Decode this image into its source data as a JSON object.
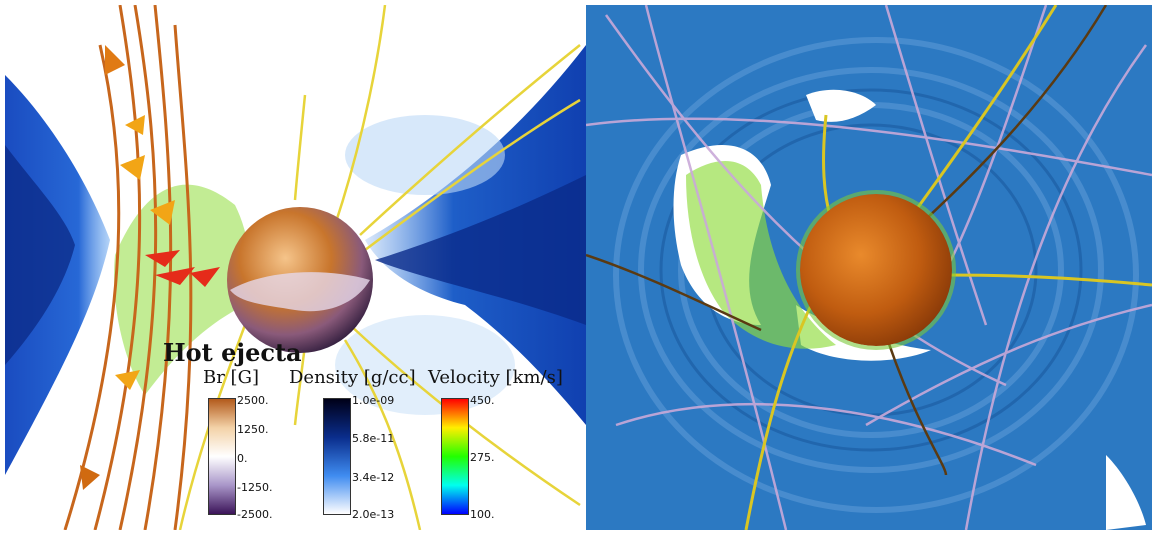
{
  "annotation": {
    "title": "Hot ejecta"
  },
  "colorbars": [
    {
      "title": "Br [G]",
      "ticks": [
        "2500.",
        "1250.",
        "0.",
        "-1250.",
        "-2500."
      ],
      "colors": [
        "#b35a1b",
        "#f3d2a8",
        "#ffffff",
        "#a996c9",
        "#3b1458"
      ]
    },
    {
      "title": "Density [g/cc]",
      "ticks": [
        "1.0e-09",
        "5.8e-11",
        "3.4e-12",
        "2.0e-13"
      ],
      "colors": [
        "#000018",
        "#0a2d8c",
        "#3f8cf0",
        "#ffffff"
      ]
    },
    {
      "title": "Velocity [km/s]",
      "ticks": [
        "450.",
        "275.",
        "100."
      ],
      "colors": [
        "#ff0000",
        "#ffee00",
        "#22ff00",
        "#00ffee",
        "#0000ff"
      ]
    }
  ],
  "palette": {
    "field_line_orange": "#c7661c",
    "field_line_yellow": "#e7d43a",
    "field_line_lilac": "#c9a9d9",
    "plasma_blue": "#2c79c2",
    "ejecta_green": "#8fdc3c"
  }
}
